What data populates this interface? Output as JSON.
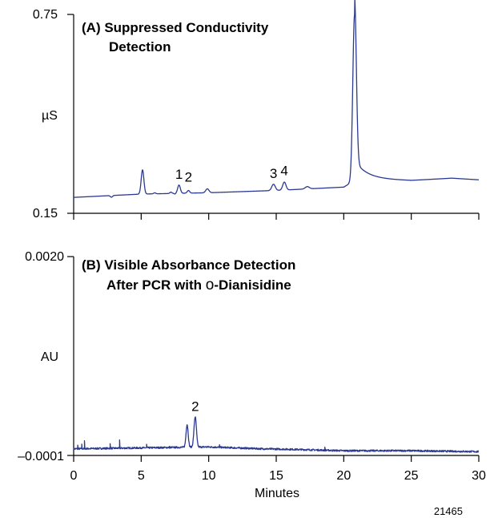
{
  "chart_data": [
    {
      "type": "line",
      "panel": "A",
      "title_line1": "(A) Suppressed Conductivity",
      "title_line2": "Detection",
      "ylabel": "µS",
      "ytick_top": "0.75",
      "ytick_bottom": "0.15",
      "ylim": [
        0.15,
        0.75
      ],
      "xlim": [
        0,
        30
      ],
      "peak_labels": [
        {
          "text": "1",
          "x": 7.8,
          "y": 0.254
        },
        {
          "text": "2",
          "x": 8.5,
          "y": 0.245
        },
        {
          "text": "3",
          "x": 14.8,
          "y": 0.257
        },
        {
          "text": "4",
          "x": 15.6,
          "y": 0.265
        }
      ],
      "baseline": [
        [
          0,
          0.198
        ],
        [
          5,
          0.208
        ],
        [
          10,
          0.212
        ],
        [
          15,
          0.219
        ],
        [
          20,
          0.229
        ],
        [
          21,
          0.254
        ],
        [
          25,
          0.249
        ],
        [
          28,
          0.256
        ],
        [
          30,
          0.251
        ]
      ],
      "peaks": [
        {
          "x": 5.1,
          "h": 0.073,
          "w": 0.1
        },
        {
          "x": 6.0,
          "h": 0.003,
          "w": 0.08
        },
        {
          "x": 7.2,
          "h": 0.004,
          "w": 0.08
        },
        {
          "x": 7.8,
          "h": 0.025,
          "w": 0.1
        },
        {
          "x": 8.5,
          "h": 0.008,
          "w": 0.09
        },
        {
          "x": 9.9,
          "h": 0.012,
          "w": 0.12
        },
        {
          "x": 14.8,
          "h": 0.019,
          "w": 0.13
        },
        {
          "x": 15.6,
          "h": 0.024,
          "w": 0.12
        },
        {
          "x": 17.3,
          "h": 0.007,
          "w": 0.15
        },
        {
          "x": 20.8,
          "h": 0.5,
          "w": 0.13
        }
      ],
      "dips": [
        {
          "x": 2.8,
          "h": 0.005,
          "w": 0.08
        },
        {
          "x": 7.5,
          "h": 0.002,
          "w": 0.05
        }
      ],
      "tail_peak_x": 20.8,
      "tail_height": 0.055,
      "tail_decay": 0.9
    },
    {
      "type": "line",
      "panel": "B",
      "title_line1": "(B) Visible Absorbance Detection",
      "title_line2_pre": "After PCR with ",
      "title_line2_symbol": "o",
      "title_line2_post": "-Dianisidine",
      "ylabel": "AU",
      "ytick_top": "0.0020",
      "ytick_bottom": "–0.0001",
      "ylim": [
        -0.0001,
        0.002
      ],
      "xlim": [
        0,
        30
      ],
      "xlabel": "Minutes",
      "xticks": [
        "0",
        "5",
        "10",
        "15",
        "20",
        "25",
        "30"
      ],
      "xtick_values": [
        0,
        5,
        10,
        15,
        20,
        25,
        30
      ],
      "peak_labels": [
        {
          "text": "2",
          "x": 9.0,
          "y": 0.00037
        }
      ],
      "baseline": [
        [
          0,
          -3e-05
        ],
        [
          5,
          -2e-05
        ],
        [
          10,
          -1e-05
        ],
        [
          14,
          -3e-05
        ],
        [
          16,
          -3.5e-05
        ],
        [
          20,
          -5e-05
        ],
        [
          25,
          -5e-05
        ],
        [
          30,
          -6e-05
        ]
      ],
      "peaks": [
        {
          "x": 8.4,
          "h": 0.00024,
          "w": 0.08
        },
        {
          "x": 9.0,
          "h": 0.00032,
          "w": 0.09
        }
      ],
      "spikes": [
        {
          "x": 0.3,
          "h": 3.5e-05
        },
        {
          "x": 0.6,
          "h": 5e-05
        },
        {
          "x": 0.8,
          "h": 8e-05
        },
        {
          "x": 2.7,
          "h": 4.5e-05
        },
        {
          "x": 3.4,
          "h": 8e-05
        },
        {
          "x": 5.4,
          "h": 3.5e-05
        },
        {
          "x": 7.1,
          "h": 2e-05
        },
        {
          "x": 10.8,
          "h": 2.5e-05
        },
        {
          "x": 18.6,
          "h": 2.5e-05
        }
      ],
      "noise": 9e-06
    }
  ],
  "figure_id": "21465"
}
